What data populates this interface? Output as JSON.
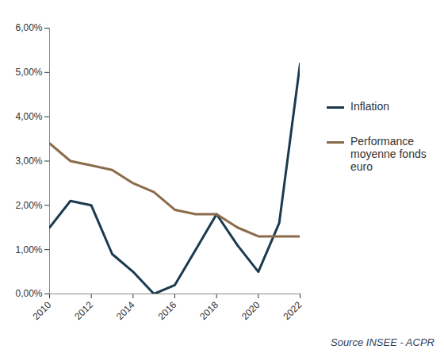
{
  "chart_data": {
    "type": "line",
    "x": [
      2010,
      2011,
      2012,
      2013,
      2014,
      2015,
      2016,
      2017,
      2018,
      2019,
      2020,
      2021,
      2022
    ],
    "series": [
      {
        "name": "Inflation",
        "color": "#1c3a4f",
        "values": [
          1.5,
          2.1,
          2.0,
          0.9,
          0.5,
          0.0,
          0.2,
          1.0,
          1.8,
          1.1,
          0.5,
          1.6,
          5.2
        ]
      },
      {
        "name": "Performance moyenne fonds euro",
        "color": "#8b6b4a",
        "values": [
          3.4,
          3.0,
          2.9,
          2.8,
          2.5,
          2.3,
          1.9,
          1.8,
          1.8,
          1.5,
          1.3,
          1.3,
          1.3
        ]
      }
    ],
    "xlim": [
      2010,
      2022
    ],
    "xticks": [
      2010,
      2012,
      2014,
      2016,
      2018,
      2020,
      2022
    ],
    "ylim": [
      0,
      6
    ],
    "yticks": [
      {
        "value": 0,
        "label": "0,00%"
      },
      {
        "value": 1,
        "label": "1,00%"
      },
      {
        "value": 2,
        "label": "2,00%"
      },
      {
        "value": 3,
        "label": "3,00%"
      },
      {
        "value": 4,
        "label": "4,00%"
      },
      {
        "value": 5,
        "label": "5,00%"
      },
      {
        "value": 6,
        "label": "6,00%"
      }
    ],
    "grid": false,
    "legend": "right",
    "caption": "Source INSEE - ACPR"
  }
}
